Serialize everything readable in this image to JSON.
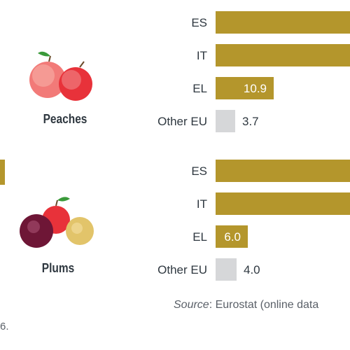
{
  "chart_data": [
    {
      "type": "bar",
      "orientation": "horizontal",
      "fruit": "Peaches",
      "categories": [
        "ES",
        "IT",
        "EL",
        "Other EU"
      ],
      "values": [
        null,
        null,
        10.9,
        3.7
      ],
      "value_labels": [
        "",
        "",
        "10.9",
        "3.7"
      ],
      "bar_colors": [
        "#b4962c",
        "#b4962c",
        "#b4962c",
        "#d6d7d9"
      ]
    },
    {
      "type": "bar",
      "orientation": "horizontal",
      "fruit": "Plums",
      "categories": [
        "ES",
        "IT",
        "EL",
        "Other EU"
      ],
      "values": [
        null,
        null,
        6.0,
        4.0
      ],
      "value_labels": [
        "",
        "",
        "6.0",
        "4.0"
      ],
      "bar_colors": [
        "#b4962c",
        "#b4962c",
        "#b4962c",
        "#d6d7d9"
      ]
    }
  ],
  "colors": {
    "accent_gold": "#b4962c",
    "other_grey": "#d6d7d9",
    "label_text": "#2f3840",
    "note_text": "#5a6068"
  },
  "icons": {
    "peaches": "peaches-illustration",
    "plums": "plums-illustration"
  },
  "source": {
    "lead": "Source",
    "rest": ": Eurostat (online data"
  },
  "footnote_fragment": "6."
}
